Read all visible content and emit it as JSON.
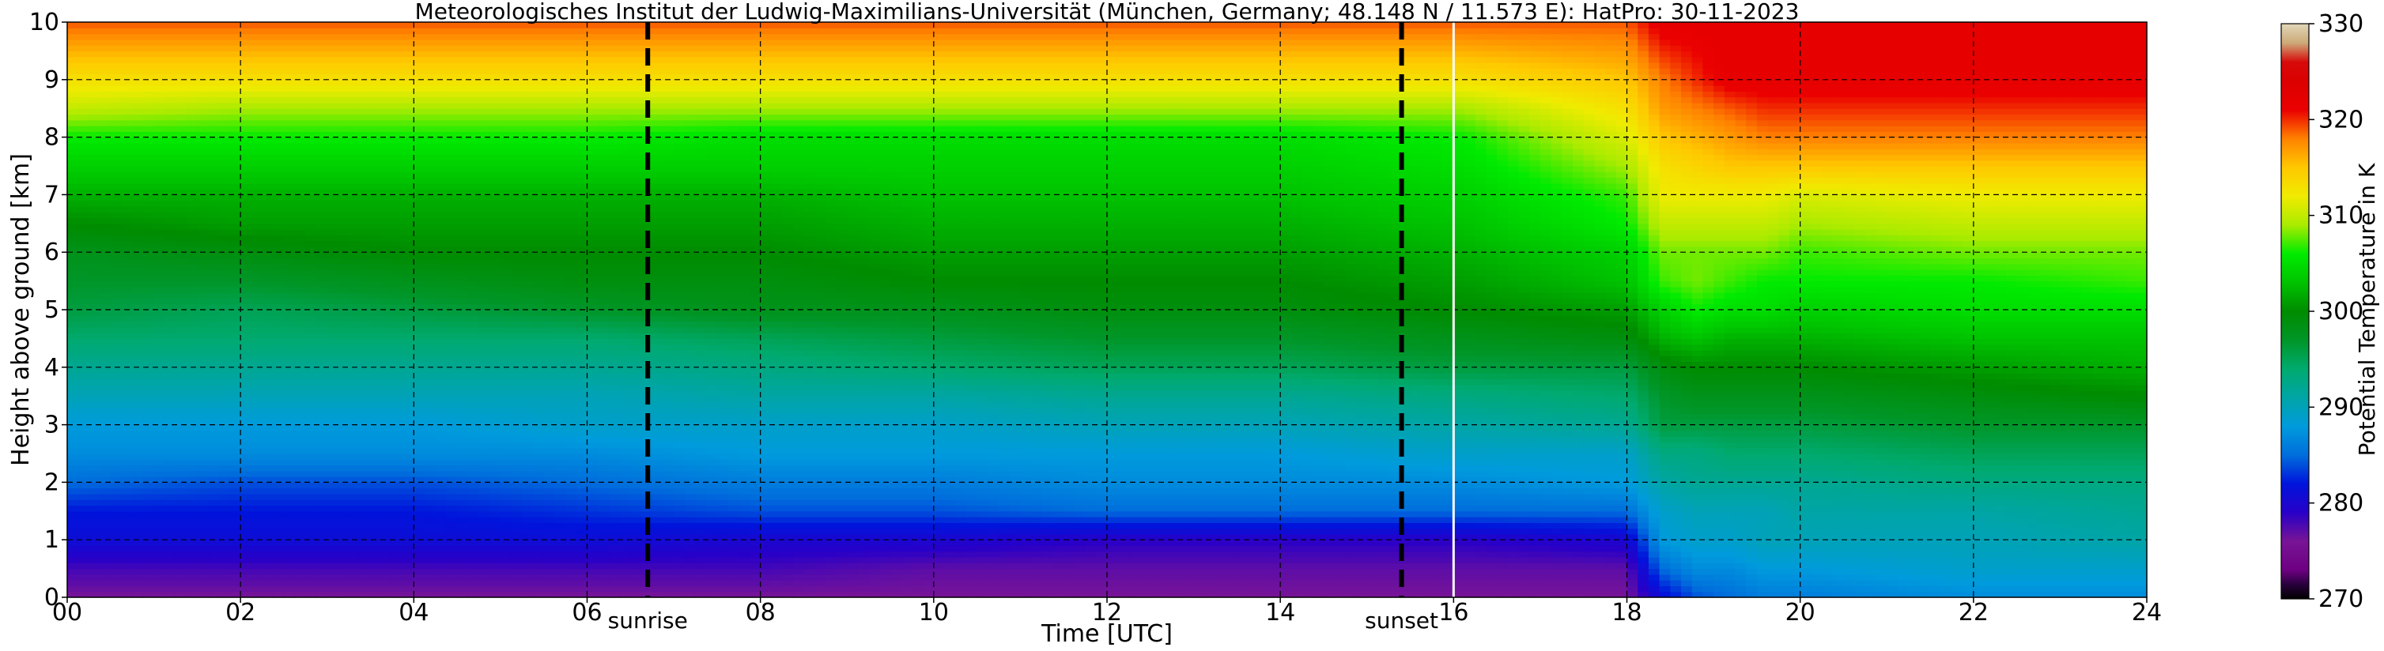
{
  "chart_data": {
    "type": "heatmap",
    "title": "Meteorologisches Institut der Ludwig-Maximilians-Universität (München, Germany; 48.148 N / 11.573 E):    HatPro: 30-11-2023",
    "xlabel": "Time [UTC]",
    "ylabel": "Height above ground [km]",
    "colorbar_label": "Potential Temperature in K",
    "xlim": [
      0,
      24
    ],
    "ylim": [
      0,
      10
    ],
    "clim": [
      270,
      330
    ],
    "x_ticks": [
      "00",
      "02",
      "04",
      "06",
      "08",
      "10",
      "12",
      "14",
      "16",
      "18",
      "20",
      "22",
      "24"
    ],
    "y_ticks": [
      "0",
      "1",
      "2",
      "3",
      "4",
      "5",
      "6",
      "7",
      "8",
      "9",
      "10"
    ],
    "colorbar_ticks": [
      "270",
      "280",
      "290",
      "300",
      "310",
      "320",
      "330"
    ],
    "grid": true,
    "markers": [
      {
        "label": "sunrise",
        "x": 6.7
      },
      {
        "label": "sunset",
        "x": 15.4
      }
    ],
    "data_gap_x": 16.0,
    "x": [
      0,
      2,
      4,
      6,
      8,
      10,
      12,
      14,
      15.9,
      16.1,
      18,
      18.4,
      18.8,
      19.2,
      19.6,
      20,
      22,
      24
    ],
    "y": [
      0,
      0.5,
      1,
      1.5,
      2,
      2.5,
      3,
      3.5,
      4,
      4.5,
      5,
      5.5,
      6,
      6.5,
      7,
      7.5,
      8,
      8.5,
      9,
      9.5,
      10
    ],
    "z": [
      [
        276,
        276,
        276,
        276,
        276,
        276,
        276,
        276,
        276,
        276,
        276,
        281,
        284,
        285,
        286,
        286,
        287,
        287
      ],
      [
        278,
        278,
        278,
        278,
        278,
        277,
        277,
        277,
        277,
        277,
        277,
        285,
        287,
        287,
        288,
        288,
        289,
        289
      ],
      [
        281,
        281,
        281,
        281,
        280,
        280,
        279,
        279,
        279,
        279,
        280,
        288,
        289,
        289,
        290,
        290,
        290,
        291
      ],
      [
        282,
        282,
        282,
        283,
        284,
        284,
        285,
        285,
        285,
        285,
        285,
        289,
        290,
        290,
        290,
        291,
        291,
        292
      ],
      [
        285,
        284,
        284,
        285,
        286,
        286,
        287,
        287,
        287,
        287,
        288,
        291,
        292,
        292,
        292,
        292,
        293,
        293
      ],
      [
        287,
        287,
        287,
        287,
        288,
        288,
        288,
        288,
        289,
        289,
        289,
        293,
        293,
        294,
        294,
        294,
        295,
        295
      ],
      [
        288,
        288,
        288,
        289,
        289,
        289,
        290,
        290,
        291,
        291,
        292,
        296,
        296,
        296,
        296,
        296,
        297,
        297
      ],
      [
        290,
        290,
        290,
        290,
        291,
        291,
        292,
        292,
        293,
        293,
        294,
        297,
        298,
        298,
        298,
        298,
        299,
        300
      ],
      [
        292,
        292,
        292,
        292,
        293,
        294,
        295,
        295,
        296,
        296,
        296,
        299,
        300,
        300,
        300,
        300,
        301,
        302
      ],
      [
        294,
        294,
        294,
        294,
        295,
        296,
        297,
        297,
        298,
        298,
        299,
        302,
        303,
        302,
        302,
        302,
        303,
        303
      ],
      [
        296,
        295,
        296,
        297,
        298,
        298,
        299,
        299,
        300,
        300,
        301,
        304,
        306,
        305,
        305,
        304,
        305,
        305
      ],
      [
        297,
        297,
        298,
        299,
        299,
        300,
        300,
        300,
        301,
        301,
        303,
        307,
        308,
        307,
        306,
        306,
        306,
        307
      ],
      [
        298,
        299,
        300,
        300,
        300,
        301,
        301,
        301,
        302,
        302,
        304,
        308,
        308,
        308,
        308,
        307,
        308,
        308
      ],
      [
        300,
        301,
        301,
        301,
        301,
        302,
        302,
        302,
        303,
        303,
        306,
        310,
        310,
        310,
        310,
        309,
        310,
        310
      ],
      [
        302,
        302,
        302,
        302,
        302,
        303,
        303,
        303,
        304,
        304,
        307,
        312,
        312,
        312,
        312,
        311,
        312,
        312
      ],
      [
        304,
        304,
        304,
        304,
        304,
        304,
        304,
        304,
        305,
        305,
        309,
        313,
        314,
        315,
        315,
        315,
        315,
        315
      ],
      [
        306,
        306,
        306,
        306,
        305,
        305,
        305,
        305,
        306,
        306,
        311,
        315,
        316,
        317,
        318,
        318,
        318,
        318
      ],
      [
        310,
        309,
        309,
        309,
        309,
        309,
        309,
        309,
        309,
        309,
        313,
        317,
        318,
        319,
        320,
        320,
        320,
        320
      ],
      [
        313,
        313,
        313,
        313,
        313,
        313,
        313,
        313,
        313,
        313,
        315,
        318,
        320,
        322,
        322,
        322,
        322,
        322
      ],
      [
        316,
        316,
        316,
        316,
        316,
        316,
        316,
        316,
        316,
        316,
        317,
        320,
        321,
        322,
        322,
        322,
        322,
        322
      ],
      [
        319,
        319,
        319,
        319,
        319,
        319,
        319,
        319,
        319,
        319,
        319,
        322,
        322,
        322,
        322,
        322,
        322,
        322
      ]
    ]
  },
  "colors": {
    "grid": "#000000",
    "marker_line": "#000000",
    "gap_line": "#ffffff",
    "frame": "#000000"
  }
}
